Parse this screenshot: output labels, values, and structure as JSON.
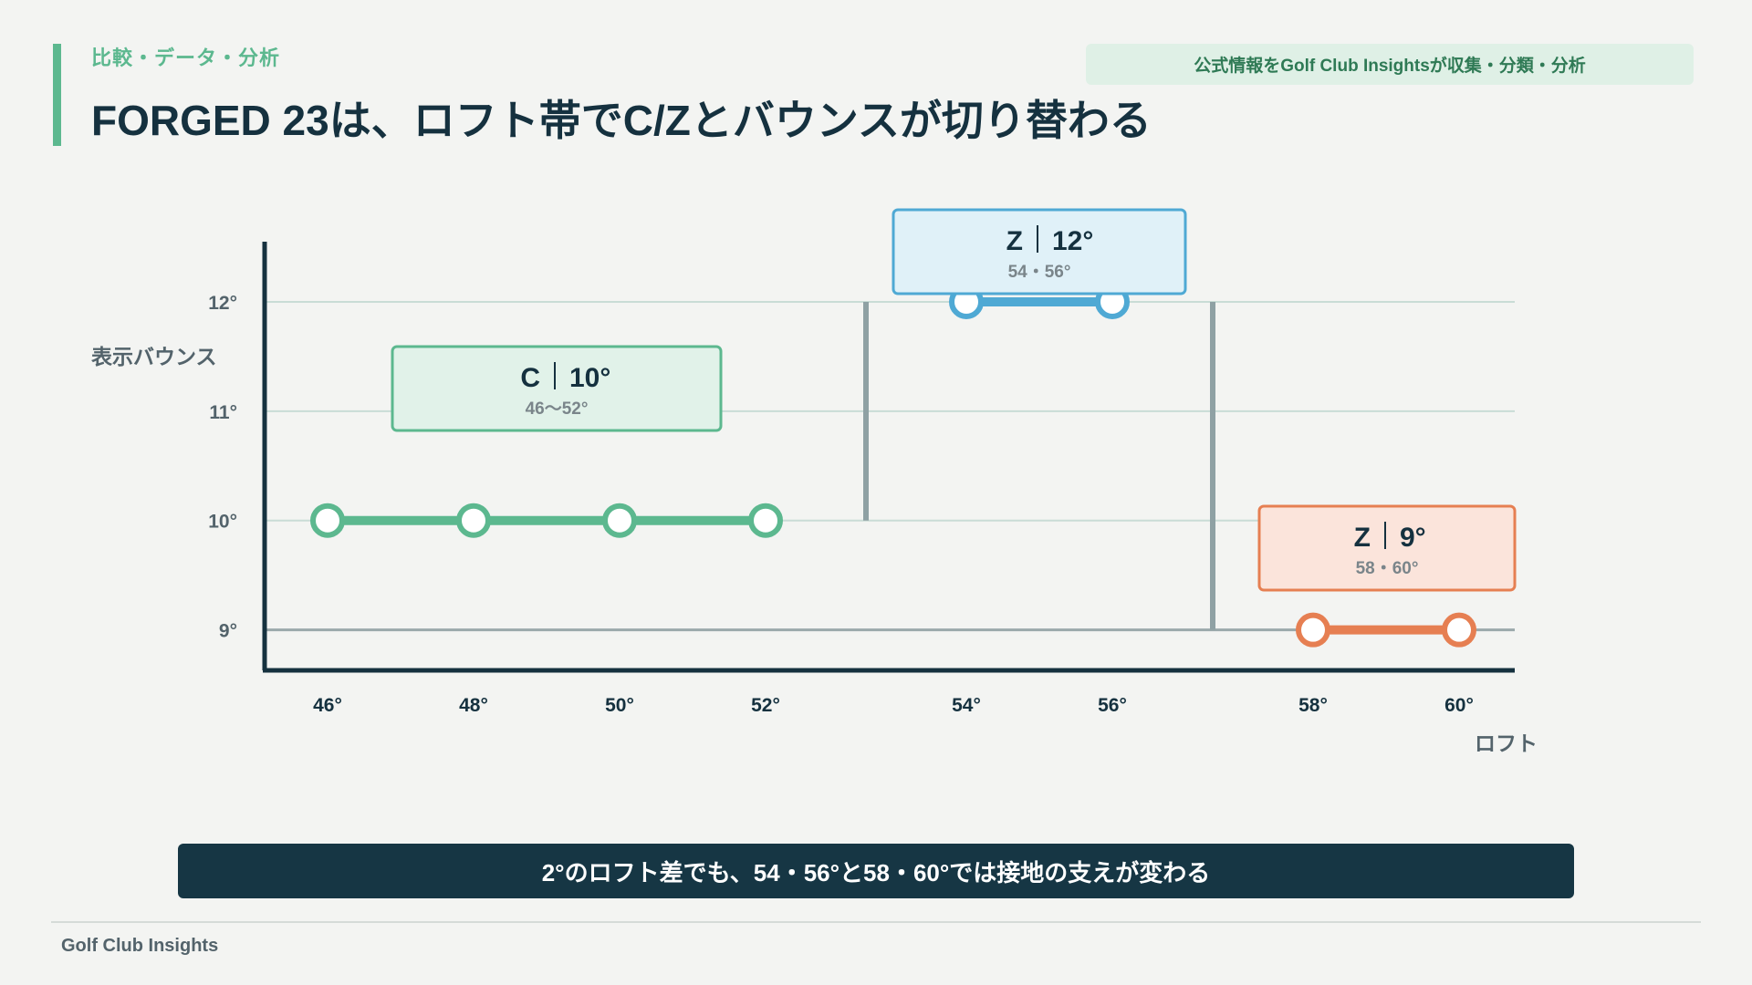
{
  "header": {
    "kicker": "比較・データ・分析",
    "title": "FORGED 23は、ロフト帯でC/Zとバウンスが切り替わる",
    "source_badge": "公式情報をGolf Club Insightsが収集・分類・分析"
  },
  "chart_data": {
    "type": "line",
    "ylabel": "表示バウンス",
    "xlabel": "ロフト",
    "y_ticks": [
      "9°",
      "10°",
      "11°",
      "12°"
    ],
    "y_tick_values": [
      9,
      10,
      11,
      12
    ],
    "x_ticks": [
      "46°",
      "48°",
      "50°",
      "52°",
      "54°",
      "56°",
      "58°",
      "60°"
    ],
    "ylim": [
      8.63,
      12.55
    ],
    "grid": true,
    "colors": {
      "C": "#5cb88f",
      "Z12": "#4fa9d4",
      "Z9": "#e67f52"
    },
    "series": [
      {
        "grind": "C",
        "bounce": "10°",
        "loft_range": "46〜52°",
        "x": [
          "46°",
          "48°",
          "50°",
          "52°"
        ],
        "y": [
          10,
          10,
          10,
          10
        ]
      },
      {
        "grind": "Z",
        "bounce": "12°",
        "loft_range": "54・56°",
        "x": [
          "54°",
          "56°"
        ],
        "y": [
          12,
          12
        ]
      },
      {
        "grind": "Z",
        "bounce": "9°",
        "loft_range": "58・60°",
        "x": [
          "58°",
          "60°"
        ],
        "y": [
          9,
          9
        ]
      }
    ]
  },
  "takeaway": "2°のロフト差でも、54・56°と58・60°では接地の支えが変わる",
  "footer": {
    "brand": "Golf Club Insights"
  }
}
